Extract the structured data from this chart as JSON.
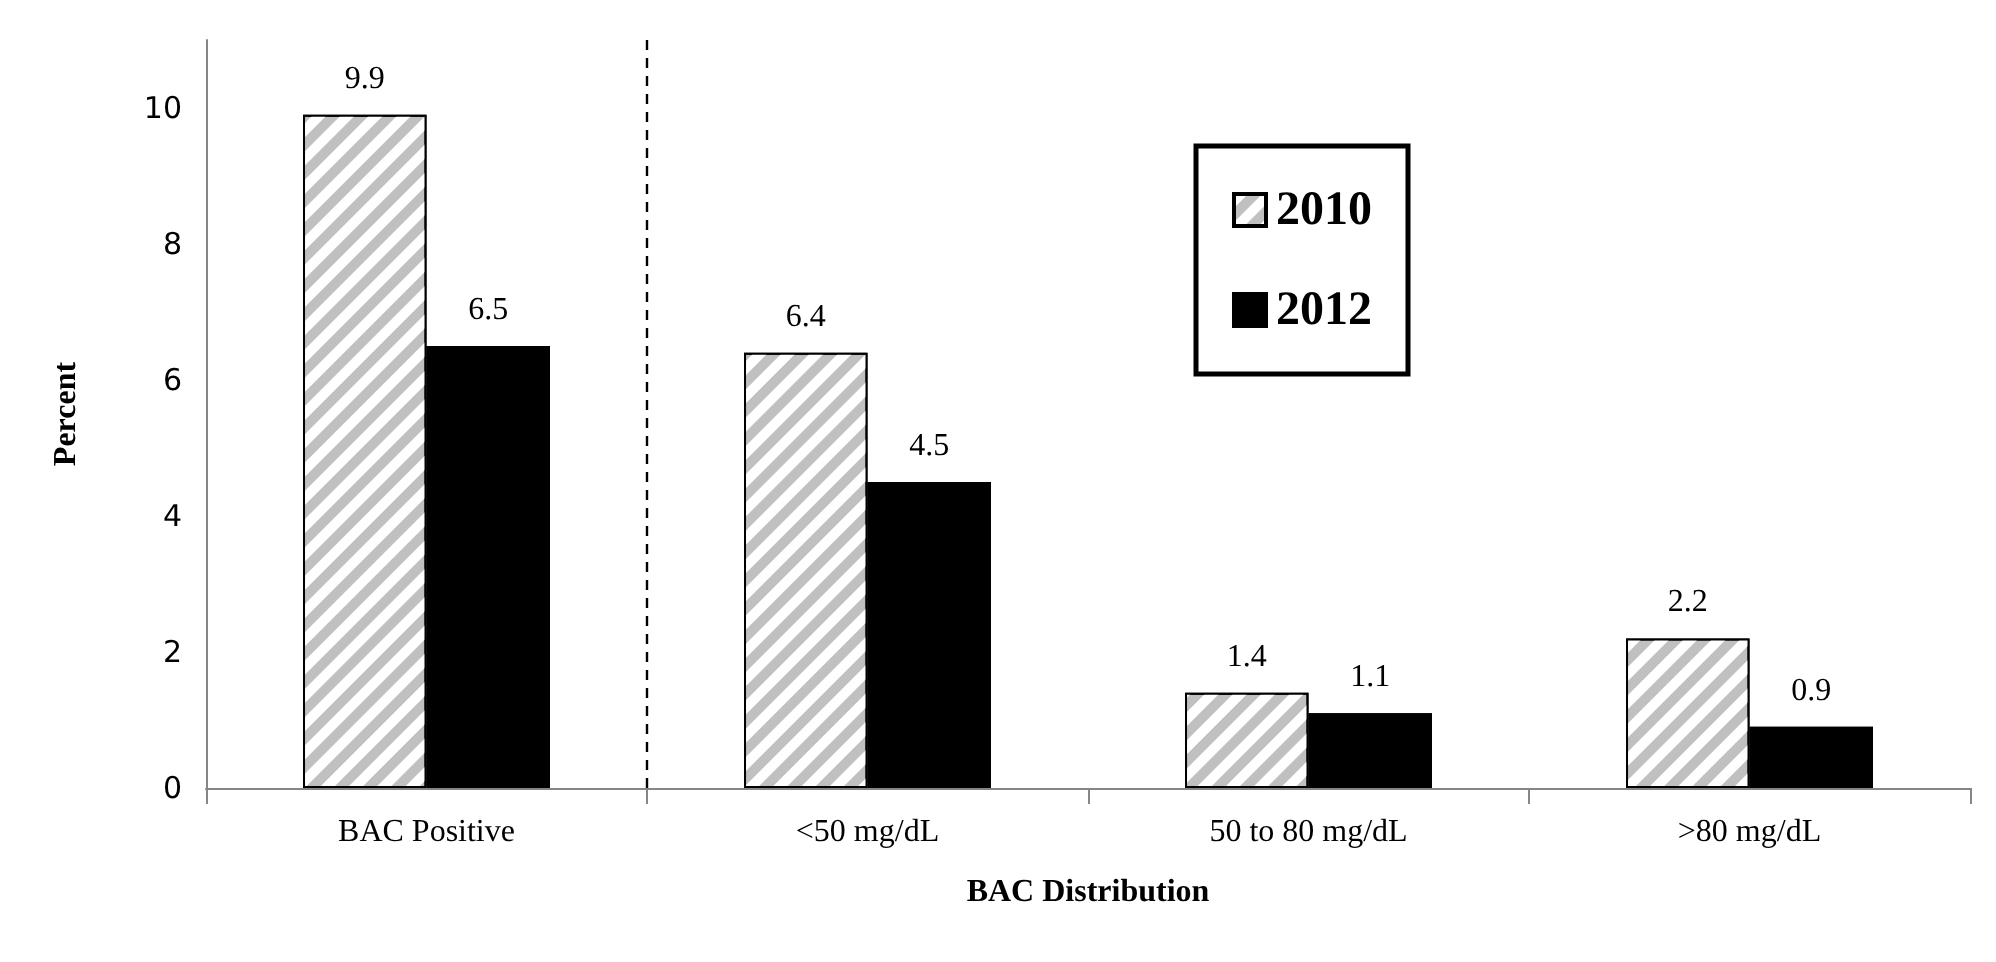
{
  "chart_data": {
    "type": "bar",
    "xlabel": "BAC Distribution",
    "ylabel": "Percent",
    "categories": [
      "BAC Positive",
      "<50 mg/dL",
      "50 to 80 mg/dL",
      ">80 mg/dL"
    ],
    "series": [
      {
        "name": "2010",
        "color": "#c0c0c0",
        "values": [
          9.9,
          6.4,
          1.4,
          2.2
        ]
      },
      {
        "name": "2012",
        "color": "#000000",
        "values": [
          6.5,
          4.5,
          1.1,
          0.9
        ]
      }
    ],
    "ylim": [
      0,
      11
    ],
    "yticks": [
      0,
      2,
      4,
      6,
      8,
      10
    ],
    "grid": false,
    "legend": "top",
    "data_labels": true
  }
}
